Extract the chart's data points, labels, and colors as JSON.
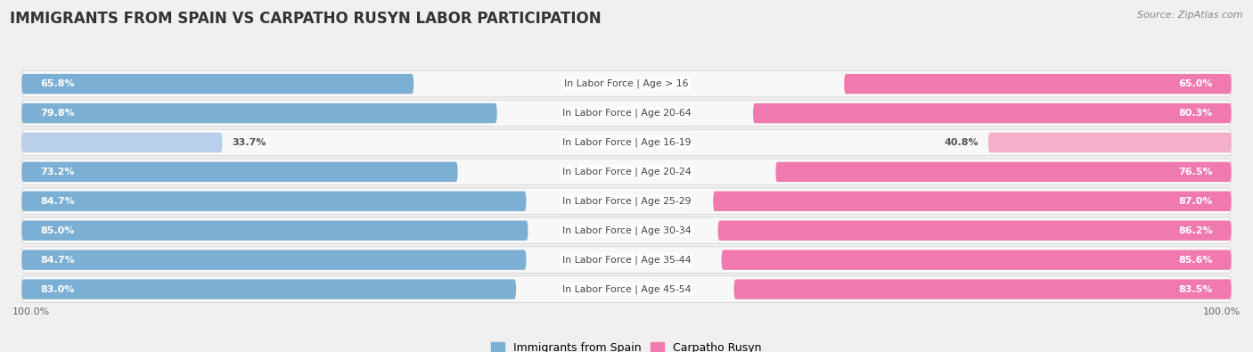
{
  "title": "IMMIGRANTS FROM SPAIN VS CARPATHO RUSYN LABOR PARTICIPATION",
  "source": "Source: ZipAtlas.com",
  "categories": [
    "In Labor Force | Age > 16",
    "In Labor Force | Age 20-64",
    "In Labor Force | Age 16-19",
    "In Labor Force | Age 20-24",
    "In Labor Force | Age 25-29",
    "In Labor Force | Age 30-34",
    "In Labor Force | Age 35-44",
    "In Labor Force | Age 45-54"
  ],
  "spain_values": [
    65.8,
    79.8,
    33.7,
    73.2,
    84.7,
    85.0,
    84.7,
    83.0
  ],
  "rusyn_values": [
    65.0,
    80.3,
    40.8,
    76.5,
    87.0,
    86.2,
    85.6,
    83.5
  ],
  "spain_color": "#7bafd4",
  "spain_color_light": "#b8d0ea",
  "rusyn_color": "#f07ab0",
  "rusyn_color_light": "#f5aecb",
  "bar_height": 0.68,
  "row_bg": "#e8e8e8",
  "row_inner_bg": "#f5f5f5",
  "background_color": "#f0f0f0",
  "label_fontsize": 8.0,
  "cat_fontsize": 7.8,
  "title_fontsize": 12,
  "max_val": 100.0,
  "legend_spain": "Immigrants from Spain",
  "legend_rusyn": "Carpatho Rusyn",
  "low_threshold": 50
}
